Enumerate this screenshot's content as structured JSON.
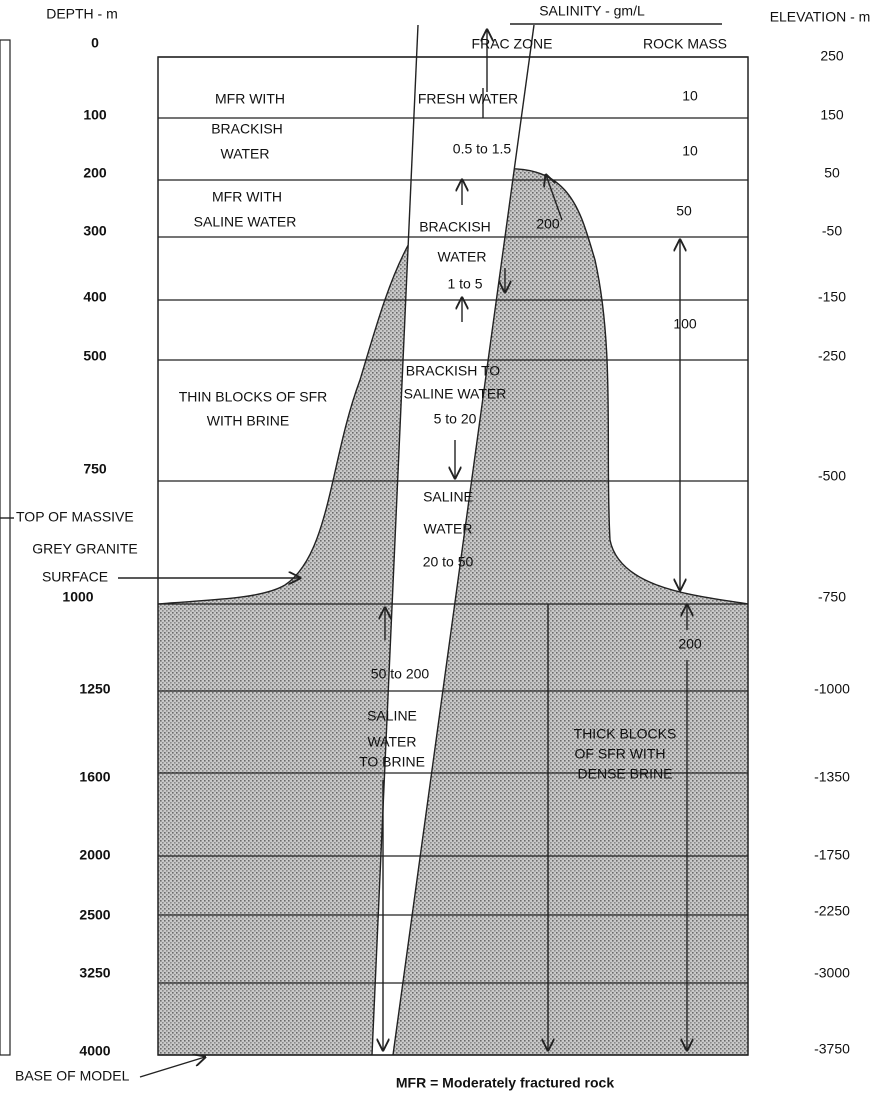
{
  "header": {
    "depth_axis": "DEPTH - m",
    "salinity": "SALINITY - gm/L",
    "elevation_axis": "ELEVATION - m",
    "frac_zone": "FRAC ZONE",
    "rock_mass": "ROCK MASS"
  },
  "depth_labels": [
    "0",
    "100",
    "200",
    "300",
    "400",
    "500",
    "750",
    "1000",
    "1250",
    "1600",
    "2000",
    "2500",
    "3250",
    "4000"
  ],
  "elevation_labels": [
    "250",
    "150",
    "50",
    "-50",
    "-150",
    "-250",
    "-500",
    "-750",
    "-1000",
    "-1350",
    "-1750",
    "-2250",
    "-3000",
    "-3750"
  ],
  "rock_mass_salinity": [
    "10",
    "10",
    "50",
    "100",
    "200",
    "200"
  ],
  "frac_zone_labels": [
    "FRESH WATER",
    "0.5 to 1.5",
    "BRACKISH",
    "WATER",
    "1 to 5",
    "BRACKISH TO",
    "SALINE WATER",
    "5 to 20",
    "SALINE",
    "WATER",
    "20 to 50",
    "50 to 200",
    "SALINE",
    "WATER",
    "TO BRINE"
  ],
  "zone_labels": [
    "MFR WITH",
    "BRACKISH",
    "WATER",
    "MFR WITH",
    "SALINE WATER",
    "THIN BLOCKS OF SFR",
    "WITH BRINE",
    "TOP OF MASSIVE",
    "GREY GRANITE",
    "SURFACE",
    "BASE OF MODEL",
    "THICK BLOCKS",
    "OF SFR WITH",
    "DENSE BRINE"
  ],
  "footer": "MFR = Moderately fractured rock"
}
